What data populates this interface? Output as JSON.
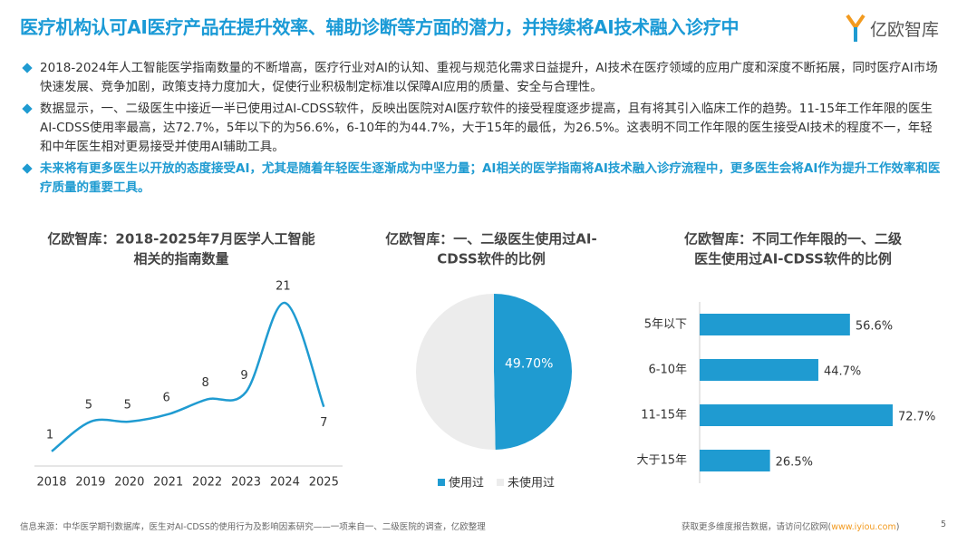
{
  "header": {
    "title": "医疗机构认可AI医疗产品在提升效率、辅助诊断等方面的潜力，并持续将AI技术融入诊疗中",
    "logo": "亿欧智库"
  },
  "bullets": [
    "2018-2024年人工智能医学指南数量的不断增高，医疗行业对AI的认知、重视与规范化需求日益提升，AI技术在医疗领域的应用广度和深度不断拓展，同时医疗AI市场快速发展、竞争加剧，政策支持力度加大，促使行业积极制定标准以保障AI应用的质量、安全与合理性。",
    "数据显示，一、二级医生中接近一半已使用过AI-CDSS软件，反映出医院对AI医疗软件的接受程度逐步提高，且有将其引入临床工作的趋势。11-15年工作年限的医生AI-CDSS使用率最高，达72.7%，5年以下的为56.6%，6-10年的为44.7%，大于15年的最低，为26.5%。这表明不同工作年限的医生接受AI技术的程度不一，年轻和中年医生相对更易接受并使用AI辅助工具。",
    "未来将有更多医生以开放的态度接受AI，尤其是随着年轻医生逐渐成为中坚力量；AI相关的医学指南将AI技术融入诊疗流程中，更多医生会将AI作为提升工作效率和医疗质量的重要工具。"
  ],
  "chart_data": [
    {
      "type": "line",
      "title": [
        "亿欧智库：2018-2025年7月医学人工智能",
        "相关的指南数量"
      ],
      "categories": [
        "2018",
        "2019",
        "2020",
        "2021",
        "2022",
        "2023",
        "2024",
        "2025"
      ],
      "values": [
        1,
        5,
        5,
        6,
        8,
        9,
        21,
        7
      ],
      "color": "#1f9bd1"
    },
    {
      "type": "pie",
      "title": [
        "亿欧智库：一、二级医生使用过AI-",
        "CDSS软件的比例"
      ],
      "categories": [
        "使用过",
        "未使用过"
      ],
      "values": [
        49.7,
        50.3
      ],
      "value_labels": [
        "49.70%",
        null
      ],
      "colors": [
        "#1f9bd1",
        "#ececec"
      ]
    },
    {
      "type": "hbar",
      "title": [
        "亿欧智库：不同工作年限的一、二级",
        "医生使用过AI-CDSS软件的比例"
      ],
      "categories": [
        "5年以下",
        "6-10年",
        "11-15年",
        "大于15年"
      ],
      "values": [
        56.6,
        44.7,
        72.7,
        26.5
      ],
      "value_labels": [
        "56.6%",
        "44.7%",
        "72.7%",
        "26.5%"
      ],
      "color": "#1f9bd1"
    }
  ],
  "footer": {
    "source": "信息来源：中华医学期刊数据库，医生对AI-CDSS的使用行为及影响因素研究——一项来自一、二级医院的调查，亿欧整理",
    "cta": [
      "获取更多维度报告数据，请访问亿欧网(",
      "www.iyiou.com",
      ")"
    ],
    "page": "5"
  }
}
